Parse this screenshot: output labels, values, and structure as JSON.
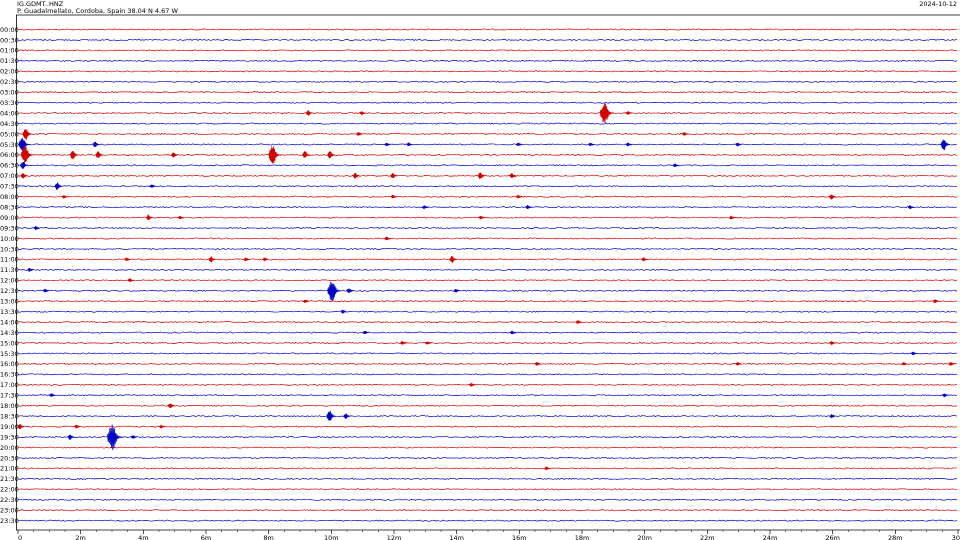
{
  "header": {
    "station": "IG.GDMT..HNZ",
    "location": "P. Guadalmellato, Cordoba, Spain  38.04 N 4.67 W",
    "date": "2024-10-12"
  },
  "chart_data": {
    "type": "line",
    "title": "",
    "xlabel": "",
    "ylabel": "",
    "xlim": [
      0,
      30
    ],
    "x_unit": "minutes",
    "x_ticks": [
      0,
      2,
      4,
      6,
      8,
      10,
      12,
      14,
      16,
      18,
      20,
      22,
      24,
      26,
      28,
      30
    ],
    "x_tick_labels": [
      "0",
      "2m",
      "4m",
      "6m",
      "8m",
      "10m",
      "12m",
      "14m",
      "16m",
      "18m",
      "20m",
      "22m",
      "24m",
      "26m",
      "28m",
      "30"
    ],
    "row_labels": [
      "00:00",
      "00:30",
      "01:00",
      "01:30",
      "02:00",
      "02:30",
      "03:00",
      "03:30",
      "04:00",
      "04:30",
      "05:00",
      "05:30",
      "06:00",
      "06:30",
      "07:00",
      "07:30",
      "08:00",
      "08:30",
      "09:00",
      "09:30",
      "10:00",
      "10:30",
      "11:00",
      "11:30",
      "12:00",
      "12:30",
      "13:00",
      "13:30",
      "14:00",
      "14:30",
      "15:00",
      "15:30",
      "16:00",
      "16:30",
      "17:00",
      "17:30",
      "18:00",
      "18:30",
      "19:00",
      "19:30",
      "20:00",
      "20:30",
      "21:00",
      "21:30",
      "22:00",
      "22:30",
      "23:00",
      "23:30"
    ],
    "colors": [
      "#d40000",
      "#0000c8"
    ],
    "events": [
      {
        "row": 8,
        "minute": 9.3,
        "amp": 3
      },
      {
        "row": 8,
        "minute": 11.0,
        "amp": 2
      },
      {
        "row": 8,
        "minute": 18.8,
        "amp": 12
      },
      {
        "row": 8,
        "minute": 19.5,
        "amp": 2
      },
      {
        "row": 10,
        "minute": 0.3,
        "amp": 6
      },
      {
        "row": 10,
        "minute": 10.9,
        "amp": 2
      },
      {
        "row": 10,
        "minute": 21.3,
        "amp": 2
      },
      {
        "row": 11,
        "minute": 0.2,
        "amp": 8
      },
      {
        "row": 11,
        "minute": 2.5,
        "amp": 3
      },
      {
        "row": 11,
        "minute": 11.8,
        "amp": 2
      },
      {
        "row": 11,
        "minute": 12.5,
        "amp": 2
      },
      {
        "row": 11,
        "minute": 16.0,
        "amp": 2
      },
      {
        "row": 11,
        "minute": 18.3,
        "amp": 2
      },
      {
        "row": 11,
        "minute": 19.5,
        "amp": 2
      },
      {
        "row": 11,
        "minute": 23.0,
        "amp": 2
      },
      {
        "row": 11,
        "minute": 29.6,
        "amp": 6
      },
      {
        "row": 12,
        "minute": 0.3,
        "amp": 10
      },
      {
        "row": 12,
        "minute": 1.8,
        "amp": 5
      },
      {
        "row": 12,
        "minute": 2.6,
        "amp": 4
      },
      {
        "row": 12,
        "minute": 5.0,
        "amp": 3
      },
      {
        "row": 12,
        "minute": 8.2,
        "amp": 10
      },
      {
        "row": 12,
        "minute": 9.2,
        "amp": 4
      },
      {
        "row": 12,
        "minute": 10.0,
        "amp": 4
      },
      {
        "row": 13,
        "minute": 0.2,
        "amp": 4
      },
      {
        "row": 13,
        "minute": 21.0,
        "amp": 2
      },
      {
        "row": 14,
        "minute": 0.2,
        "amp": 3
      },
      {
        "row": 14,
        "minute": 10.8,
        "amp": 3
      },
      {
        "row": 14,
        "minute": 12.0,
        "amp": 3
      },
      {
        "row": 14,
        "minute": 14.8,
        "amp": 4
      },
      {
        "row": 14,
        "minute": 15.8,
        "amp": 3
      },
      {
        "row": 15,
        "minute": 1.3,
        "amp": 4
      },
      {
        "row": 15,
        "minute": 4.3,
        "amp": 2
      },
      {
        "row": 16,
        "minute": 1.5,
        "amp": 2
      },
      {
        "row": 16,
        "minute": 12.0,
        "amp": 2
      },
      {
        "row": 16,
        "minute": 16.0,
        "amp": 2
      },
      {
        "row": 16,
        "minute": 26.0,
        "amp": 3
      },
      {
        "row": 17,
        "minute": 13.0,
        "amp": 2
      },
      {
        "row": 17,
        "minute": 16.3,
        "amp": 2
      },
      {
        "row": 17,
        "minute": 28.5,
        "amp": 2
      },
      {
        "row": 18,
        "minute": 4.2,
        "amp": 3
      },
      {
        "row": 18,
        "minute": 5.2,
        "amp": 2
      },
      {
        "row": 18,
        "minute": 14.8,
        "amp": 2
      },
      {
        "row": 18,
        "minute": 22.8,
        "amp": 2
      },
      {
        "row": 19,
        "minute": 0.6,
        "amp": 2
      },
      {
        "row": 20,
        "minute": 11.8,
        "amp": 2
      },
      {
        "row": 22,
        "minute": 3.5,
        "amp": 2
      },
      {
        "row": 22,
        "minute": 6.2,
        "amp": 3
      },
      {
        "row": 22,
        "minute": 7.3,
        "amp": 2
      },
      {
        "row": 22,
        "minute": 7.9,
        "amp": 2
      },
      {
        "row": 22,
        "minute": 13.9,
        "amp": 4
      },
      {
        "row": 22,
        "minute": 20.0,
        "amp": 2
      },
      {
        "row": 23,
        "minute": 0.4,
        "amp": 2
      },
      {
        "row": 24,
        "minute": 3.6,
        "amp": 2
      },
      {
        "row": 25,
        "minute": 0.9,
        "amp": 2
      },
      {
        "row": 25,
        "minute": 10.1,
        "amp": 12
      },
      {
        "row": 25,
        "minute": 10.6,
        "amp": 3
      },
      {
        "row": 25,
        "minute": 14.0,
        "amp": 2
      },
      {
        "row": 26,
        "minute": 9.2,
        "amp": 2
      },
      {
        "row": 26,
        "minute": 29.3,
        "amp": 2
      },
      {
        "row": 27,
        "minute": 10.4,
        "amp": 2
      },
      {
        "row": 28,
        "minute": 17.9,
        "amp": 2
      },
      {
        "row": 29,
        "minute": 11.1,
        "amp": 2
      },
      {
        "row": 29,
        "minute": 15.8,
        "amp": 2
      },
      {
        "row": 30,
        "minute": 12.3,
        "amp": 2
      },
      {
        "row": 30,
        "minute": 13.1,
        "amp": 2
      },
      {
        "row": 30,
        "minute": 26.0,
        "amp": 2
      },
      {
        "row": 31,
        "minute": 28.6,
        "amp": 2
      },
      {
        "row": 32,
        "minute": 16.6,
        "amp": 2
      },
      {
        "row": 32,
        "minute": 23.0,
        "amp": 2
      },
      {
        "row": 32,
        "minute": 28.3,
        "amp": 2
      },
      {
        "row": 32,
        "minute": 29.8,
        "amp": 2
      },
      {
        "row": 34,
        "minute": 14.5,
        "amp": 2
      },
      {
        "row": 35,
        "minute": 1.1,
        "amp": 2
      },
      {
        "row": 35,
        "minute": 29.6,
        "amp": 2
      },
      {
        "row": 36,
        "minute": 4.9,
        "amp": 3
      },
      {
        "row": 37,
        "minute": 10.0,
        "amp": 6
      },
      {
        "row": 37,
        "minute": 10.5,
        "amp": 3
      },
      {
        "row": 37,
        "minute": 26.0,
        "amp": 2
      },
      {
        "row": 38,
        "minute": 0.1,
        "amp": 3
      },
      {
        "row": 38,
        "minute": 1.9,
        "amp": 2
      },
      {
        "row": 38,
        "minute": 4.6,
        "amp": 2
      },
      {
        "row": 39,
        "minute": 1.7,
        "amp": 3
      },
      {
        "row": 39,
        "minute": 3.1,
        "amp": 14
      },
      {
        "row": 39,
        "minute": 3.7,
        "amp": 2
      },
      {
        "row": 42,
        "minute": 16.9,
        "amp": 2
      }
    ]
  }
}
